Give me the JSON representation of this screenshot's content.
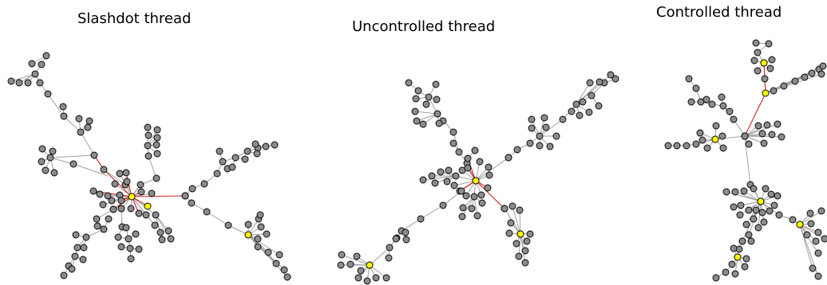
{
  "figure": {
    "panels": [
      {
        "id": "slashdot",
        "title": "Slashdot thread"
      },
      {
        "id": "uncontrolled",
        "title": "Uncontrolled thread"
      },
      {
        "id": "controlled",
        "title": "Controlled thread"
      }
    ]
  },
  "colors": {
    "node_fill": "#8c8c8c",
    "node_stroke": "#000000",
    "highlight_node_fill": "#ffff00",
    "minor_node_fill": "#b9c94b",
    "edge": "#a0a0a0",
    "highlight_edge": "#cc2222"
  }
}
